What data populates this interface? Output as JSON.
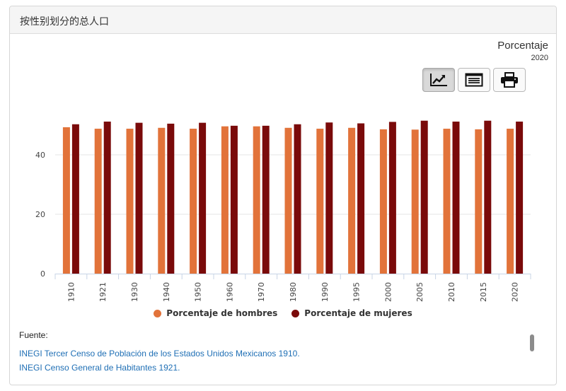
{
  "panel": {
    "title": "按性别划分的总人口"
  },
  "header": {
    "unit": "Porcentaje",
    "year": "2020"
  },
  "toolbar": {
    "buttons": [
      {
        "icon": "line-chart-icon",
        "active": true
      },
      {
        "icon": "table-icon",
        "active": false
      },
      {
        "icon": "printer-icon",
        "active": false
      }
    ]
  },
  "colors": {
    "hombres": "#e2733a",
    "mujeres": "#7a0a0a",
    "grid": "#e6e6e6",
    "axis": "#c8d4e6"
  },
  "chart_data": {
    "type": "bar",
    "categories": [
      "1910",
      "1921",
      "1930",
      "1940",
      "1950",
      "1960",
      "1970",
      "1980",
      "1990",
      "1995",
      "2000",
      "2005",
      "2010",
      "2015",
      "2020"
    ],
    "series": [
      {
        "name": "Porcentaje de hombres",
        "values": [
          49.3,
          48.8,
          48.8,
          49.1,
          48.8,
          49.6,
          49.6,
          49.1,
          48.8,
          49.1,
          48.6,
          48.5,
          48.8,
          48.6,
          48.8
        ]
      },
      {
        "name": "Porcentaje de mujeres",
        "values": [
          50.3,
          51.2,
          50.8,
          50.5,
          50.8,
          49.8,
          49.8,
          50.3,
          50.9,
          50.6,
          51.1,
          51.5,
          51.2,
          51.5,
          51.2
        ]
      }
    ],
    "y_ticks": [
      "0",
      "20",
      "40"
    ],
    "ylim": [
      0,
      55
    ],
    "grid": true,
    "legend_position": "bottom"
  },
  "source": {
    "label": "Fuente:",
    "links": [
      "INEGI Tercer Censo de Población de los Estados Unidos Mexicanos 1910.",
      "INEGI Censo General de Habitantes 1921."
    ]
  }
}
